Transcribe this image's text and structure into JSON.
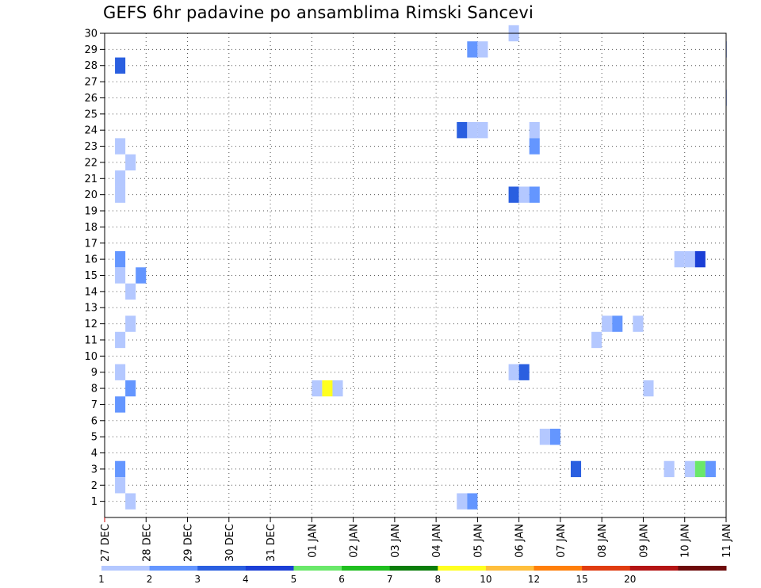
{
  "title": "GEFS 6hr padavine po ansamblima Rimski Sancevi",
  "chart_data": {
    "type": "heatmap",
    "title": "GEFS 6hr padavine po ansamblima Rimski Sancevi",
    "x_ticks": [
      "27 DEC",
      "28 DEC",
      "29 DEC",
      "30 DEC",
      "31 DEC",
      "01 JAN",
      "02 JAN",
      "03 JAN",
      "04 JAN",
      "05 JAN",
      "06 JAN",
      "07 JAN",
      "08 JAN",
      "09 JAN",
      "10 JAN",
      "11 JAN"
    ],
    "y_ticks": [
      "1",
      "2",
      "3",
      "4",
      "5",
      "6",
      "7",
      "8",
      "9",
      "10",
      "11",
      "12",
      "13",
      "14",
      "15",
      "16",
      "17",
      "18",
      "19",
      "20",
      "21",
      "22",
      "23",
      "24",
      "25",
      "26",
      "27",
      "28",
      "29",
      "30"
    ],
    "x_range_days": [
      0,
      15
    ],
    "y_range": [
      0,
      30
    ],
    "grid": true,
    "colorbar": {
      "labels": [
        "1",
        "2",
        "3",
        "4",
        "5",
        "6",
        "7",
        "8",
        "10",
        "12",
        "15",
        "20"
      ],
      "colors": [
        "#b4c8ff",
        "#6496ff",
        "#2a5fe0",
        "#1b3fd6",
        "#6ae86a",
        "#1fbf1f",
        "#0a7d0a",
        "#ffff20",
        "#ffbf3c",
        "#ff7f0a",
        "#e03c10",
        "#b41414",
        "#6e0a0a"
      ]
    },
    "cells": [
      {
        "member": 30,
        "start": "05 JAN 18z",
        "value": 1.5
      },
      {
        "member": 29,
        "start": "04 JAN 18z",
        "value": 2.5
      },
      {
        "member": 29,
        "start": "05 JAN 00z",
        "value": 1.5
      },
      {
        "member": 29,
        "start": "11 JAN 00z",
        "value": 1.5
      },
      {
        "member": 28,
        "start": "27 DEC 06z",
        "value": 3.5
      },
      {
        "member": 26,
        "start": "11 JAN 00z",
        "value": 1.5
      },
      {
        "member": 24,
        "start": "04 JAN 12z",
        "value": 3.5
      },
      {
        "member": 24,
        "start": "04 JAN 18z",
        "value": 1.5
      },
      {
        "member": 24,
        "start": "05 JAN 00z",
        "value": 1.5
      },
      {
        "member": 24,
        "start": "06 JAN 06z",
        "value": 1.5
      },
      {
        "member": 23,
        "start": "27 DEC 06z",
        "value": 1.5
      },
      {
        "member": 23,
        "start": "06 JAN 06z",
        "value": 2.5
      },
      {
        "member": 22,
        "start": "27 DEC 12z",
        "value": 1.5
      },
      {
        "member": 21,
        "start": "27 DEC 06z",
        "value": 1.5
      },
      {
        "member": 20,
        "start": "27 DEC 06z",
        "value": 1.5
      },
      {
        "member": 20,
        "start": "05 JAN 18z",
        "value": 3.5
      },
      {
        "member": 20,
        "start": "06 JAN 00z",
        "value": 1.5
      },
      {
        "member": 20,
        "start": "06 JAN 06z",
        "value": 2.5
      },
      {
        "member": 16,
        "start": "27 DEC 06z",
        "value": 2.5
      },
      {
        "member": 16,
        "start": "09 JAN 18z",
        "value": 1.5
      },
      {
        "member": 16,
        "start": "10 JAN 00z",
        "value": 1.5
      },
      {
        "member": 16,
        "start": "10 JAN 06z",
        "value": 4.5
      },
      {
        "member": 15,
        "start": "27 DEC 06z",
        "value": 1.5
      },
      {
        "member": 15,
        "start": "27 DEC 18z",
        "value": 2.5
      },
      {
        "member": 14,
        "start": "27 DEC 12z",
        "value": 1.5
      },
      {
        "member": 12,
        "start": "27 DEC 12z",
        "value": 1.5
      },
      {
        "member": 12,
        "start": "08 JAN 00z",
        "value": 1.5
      },
      {
        "member": 12,
        "start": "08 JAN 06z",
        "value": 2.5
      },
      {
        "member": 12,
        "start": "08 JAN 18z",
        "value": 1.5
      },
      {
        "member": 11,
        "start": "27 DEC 06z",
        "value": 1.5
      },
      {
        "member": 11,
        "start": "07 JAN 18z",
        "value": 1.5
      },
      {
        "member": 9,
        "start": "27 DEC 06z",
        "value": 1.5
      },
      {
        "member": 9,
        "start": "05 JAN 18z",
        "value": 1.5
      },
      {
        "member": 9,
        "start": "06 JAN 00z",
        "value": 3.5
      },
      {
        "member": 8,
        "start": "27 DEC 12z",
        "value": 2.5
      },
      {
        "member": 8,
        "start": "01 JAN 00z",
        "value": 1.5
      },
      {
        "member": 8,
        "start": "01 JAN 06z",
        "value": 9.0
      },
      {
        "member": 8,
        "start": "01 JAN 12z",
        "value": 1.5
      },
      {
        "member": 8,
        "start": "09 JAN 00z",
        "value": 1.5
      },
      {
        "member": 7,
        "start": "27 DEC 06z",
        "value": 2.5
      },
      {
        "member": 5,
        "start": "06 JAN 12z",
        "value": 1.5
      },
      {
        "member": 5,
        "start": "06 JAN 18z",
        "value": 2.5
      },
      {
        "member": 3,
        "start": "07 JAN 06z",
        "value": 3.5
      },
      {
        "member": 3,
        "start": "27 DEC 06z",
        "value": 2.5
      },
      {
        "member": 3,
        "start": "09 JAN 12z",
        "value": 1.5
      },
      {
        "member": 3,
        "start": "10 JAN 00z",
        "value": 1.5
      },
      {
        "member": 3,
        "start": "10 JAN 06z",
        "value": 5.5
      },
      {
        "member": 3,
        "start": "10 JAN 12z",
        "value": 2.5
      },
      {
        "member": 2,
        "start": "27 DEC 06z",
        "value": 1.5
      },
      {
        "member": 1,
        "start": "27 DEC 12z",
        "value": 1.5
      },
      {
        "member": 1,
        "start": "04 JAN 12z",
        "value": 1.5
      },
      {
        "member": 1,
        "start": "04 JAN 18z",
        "value": 2.5
      }
    ]
  }
}
